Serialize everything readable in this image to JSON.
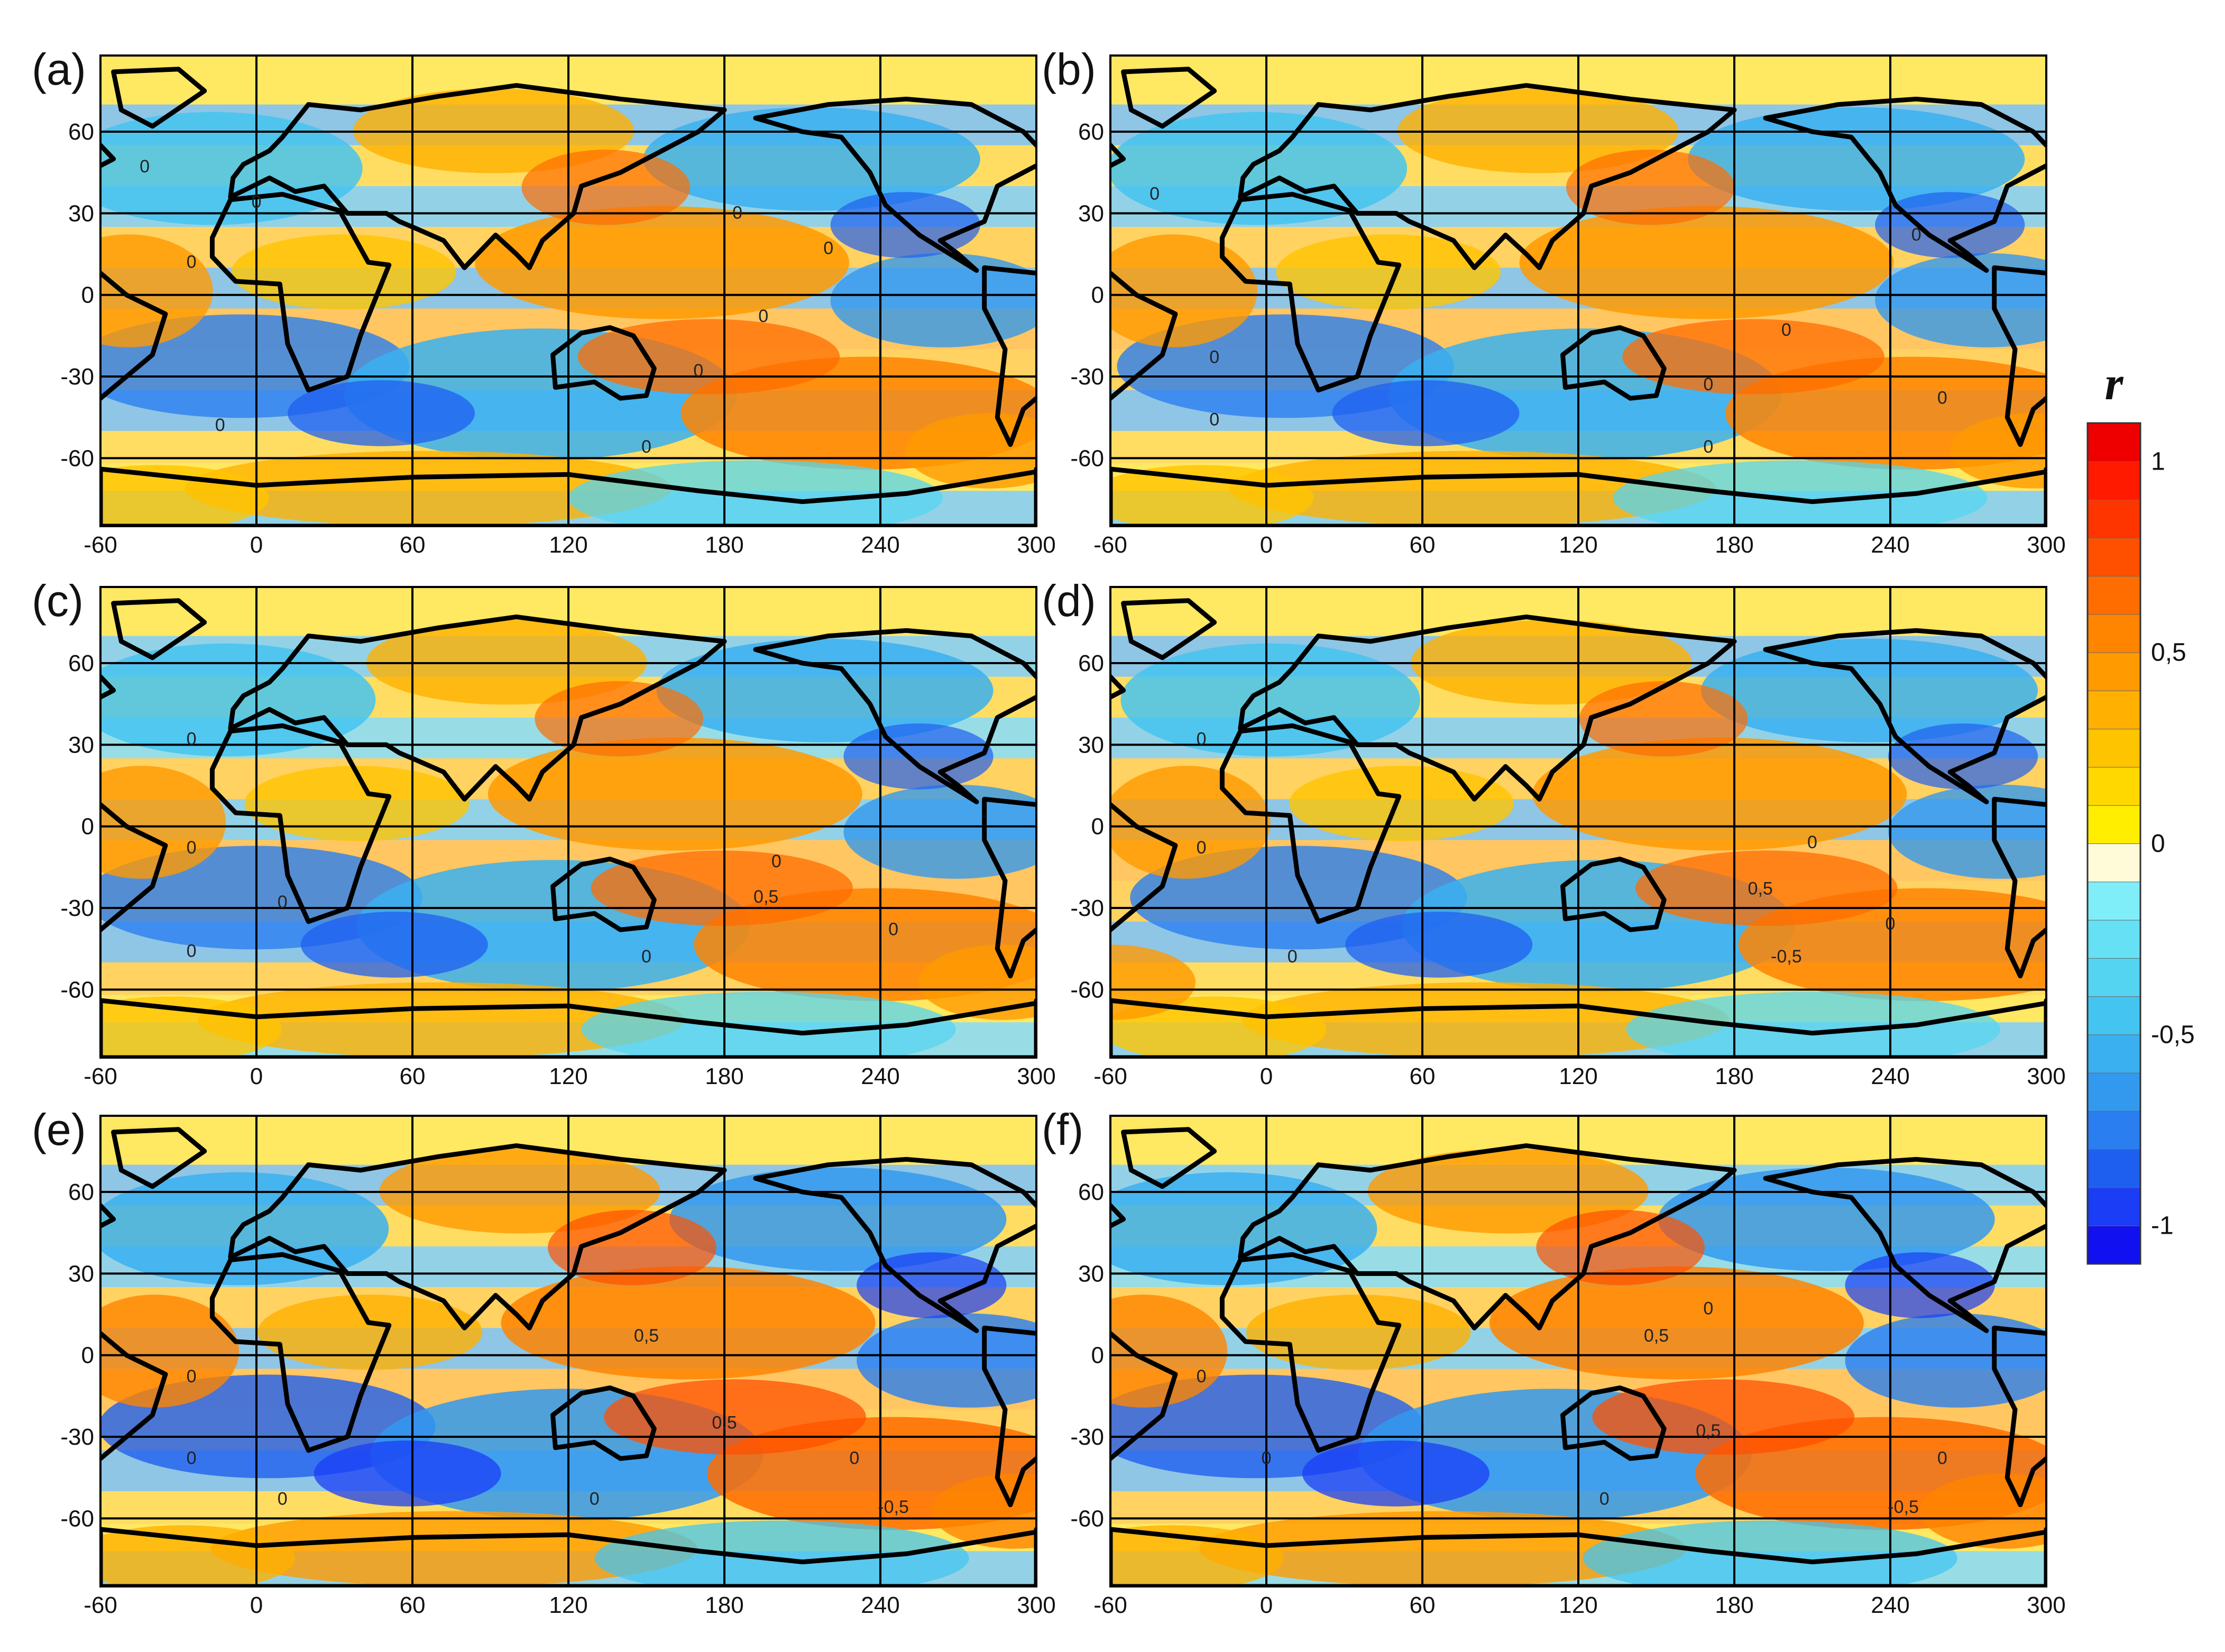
{
  "figure": {
    "panels": [
      {
        "id": "a",
        "label": "(a)",
        "contour_labels": [
          {
            "lon": -43,
            "lat": 45,
            "t": "0"
          },
          {
            "lon": -25,
            "lat": 10,
            "t": "0"
          },
          {
            "lon": 0,
            "lat": 32,
            "t": "0"
          },
          {
            "lon": -14,
            "lat": -50,
            "t": "0"
          },
          {
            "lon": 150,
            "lat": -58,
            "t": "0"
          },
          {
            "lon": 170,
            "lat": -30,
            "t": "0"
          },
          {
            "lon": 185,
            "lat": 28,
            "t": "0"
          },
          {
            "lon": 220,
            "lat": 15,
            "t": "0"
          },
          {
            "lon": 195,
            "lat": -10,
            "t": "0"
          }
        ]
      },
      {
        "id": "b",
        "label": "(b)",
        "contour_labels": [
          {
            "lon": -43,
            "lat": 35,
            "t": "0"
          },
          {
            "lon": -20,
            "lat": -25,
            "t": "0"
          },
          {
            "lon": -20,
            "lat": -48,
            "t": "0"
          },
          {
            "lon": 170,
            "lat": -35,
            "t": "0"
          },
          {
            "lon": 170,
            "lat": -58,
            "t": "0"
          },
          {
            "lon": 200,
            "lat": -15,
            "t": "0"
          },
          {
            "lon": 250,
            "lat": 20,
            "t": "0"
          },
          {
            "lon": 260,
            "lat": -40,
            "t": "0"
          }
        ]
      },
      {
        "id": "c",
        "label": "(c)",
        "contour_labels": [
          {
            "lon": -25,
            "lat": 30,
            "t": "0"
          },
          {
            "lon": -25,
            "lat": -10,
            "t": "0"
          },
          {
            "lon": -25,
            "lat": -48,
            "t": "0"
          },
          {
            "lon": 10,
            "lat": -30,
            "t": "0"
          },
          {
            "lon": 150,
            "lat": -50,
            "t": "0"
          },
          {
            "lon": 196,
            "lat": -28,
            "t": "0,5"
          },
          {
            "lon": 200,
            "lat": -15,
            "t": "0"
          },
          {
            "lon": 245,
            "lat": -40,
            "t": "0"
          }
        ]
      },
      {
        "id": "d",
        "label": "(d)",
        "contour_labels": [
          {
            "lon": -25,
            "lat": 30,
            "t": "0"
          },
          {
            "lon": -25,
            "lat": -10,
            "t": "0"
          },
          {
            "lon": 10,
            "lat": -50,
            "t": "0"
          },
          {
            "lon": 190,
            "lat": -25,
            "t": "0,5"
          },
          {
            "lon": 200,
            "lat": -50,
            "t": "-0,5"
          },
          {
            "lon": 240,
            "lat": -38,
            "t": "0"
          },
          {
            "lon": 210,
            "lat": -8,
            "t": "0"
          }
        ]
      },
      {
        "id": "e",
        "label": "(e)",
        "contour_labels": [
          {
            "lon": -25,
            "lat": -10,
            "t": "0"
          },
          {
            "lon": -25,
            "lat": -40,
            "t": "0"
          },
          {
            "lon": 10,
            "lat": -55,
            "t": "0"
          },
          {
            "lon": 150,
            "lat": 5,
            "t": "0,5"
          },
          {
            "lon": 180,
            "lat": -27,
            "t": "0,5"
          },
          {
            "lon": 245,
            "lat": -58,
            "t": "-0,5"
          },
          {
            "lon": 130,
            "lat": -55,
            "t": "0"
          },
          {
            "lon": 230,
            "lat": -40,
            "t": "0"
          }
        ]
      },
      {
        "id": "f",
        "label": "(f)",
        "contour_labels": [
          {
            "lon": -25,
            "lat": -10,
            "t": "0"
          },
          {
            "lon": 0,
            "lat": -40,
            "t": "0"
          },
          {
            "lon": 150,
            "lat": 5,
            "t": "0,5"
          },
          {
            "lon": 170,
            "lat": -30,
            "t": "0,5"
          },
          {
            "lon": 245,
            "lat": -58,
            "t": "-0,5"
          },
          {
            "lon": 130,
            "lat": -55,
            "t": "0"
          },
          {
            "lon": 260,
            "lat": -40,
            "t": "0"
          },
          {
            "lon": 170,
            "lat": 15,
            "t": "0"
          }
        ]
      }
    ],
    "x_axis": {
      "ticks": [
        -60,
        0,
        60,
        120,
        180,
        240,
        300
      ],
      "range": [
        -60,
        300
      ]
    },
    "y_axis": {
      "ticks": [
        60,
        30,
        0,
        -30,
        -60
      ],
      "range": [
        -85,
        88
      ]
    },
    "grid": true,
    "colorbar": {
      "title": "r",
      "range": [
        -1.1,
        1.1
      ],
      "tick_labels": [
        {
          "v": 1,
          "t": "1"
        },
        {
          "v": 0.5,
          "t": "0,5"
        },
        {
          "v": 0,
          "t": "0"
        },
        {
          "v": -0.5,
          "t": "-0,5"
        },
        {
          "v": -1,
          "t": "-1"
        }
      ],
      "colors_low_to_high": [
        "#1010f0",
        "#1a3df5",
        "#1f5ff0",
        "#2a7ef0",
        "#3399ee",
        "#3ab0f0",
        "#44c4f0",
        "#55d4f2",
        "#66e0f5",
        "#80eef8",
        "#fffbd9",
        "#ffee00",
        "#ffd800",
        "#ffc400",
        "#ffb000",
        "#ff9a00",
        "#ff8400",
        "#ff6c00",
        "#ff5000",
        "#ff3500",
        "#ff1a00",
        "#ee0000"
      ],
      "legend_placement": "right"
    }
  }
}
